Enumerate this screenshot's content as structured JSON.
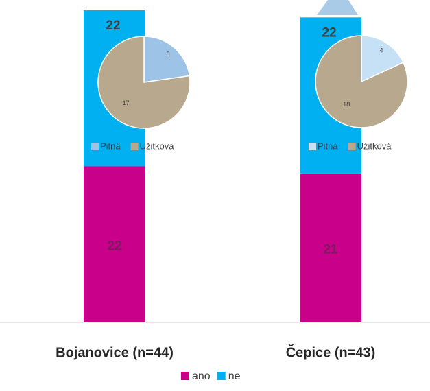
{
  "chart_data": [
    {
      "type": "bar",
      "stacked": true,
      "categories": [
        "Bojanovice (n=44)",
        "Čepice (n=43)"
      ],
      "series": [
        {
          "name": "ano",
          "color": "#c8008a",
          "values": [
            22,
            21
          ]
        },
        {
          "name": "ne",
          "color": "#00b0f0",
          "values": [
            22,
            22
          ]
        }
      ],
      "ylim": [
        0,
        44
      ]
    },
    {
      "type": "pie",
      "categories": [
        "Pitná",
        "Užitková"
      ],
      "values": [
        5,
        17
      ],
      "colors": [
        "#9dc3e6",
        "#b8a88e"
      ]
    },
    {
      "type": "pie",
      "categories": [
        "Pitná",
        "Užitková"
      ],
      "values": [
        4,
        18
      ],
      "colors": [
        "#c6e0f5",
        "#b8a88e"
      ]
    }
  ]
}
